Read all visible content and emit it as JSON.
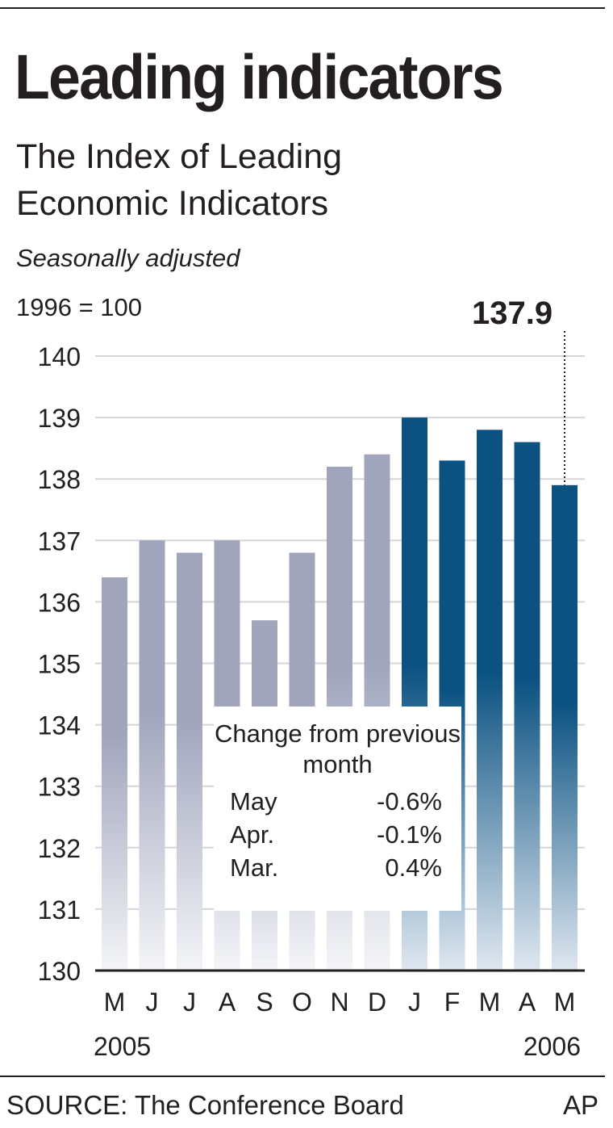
{
  "chart_data": {
    "type": "bar",
    "title": "Leading indicators",
    "subtitle": "The Index of Leading Economic Indicators",
    "note": "Seasonally adjusted",
    "ylabel": "1996 = 100",
    "ylim": [
      130,
      140
    ],
    "yticks": [
      "130",
      "131",
      "132",
      "133",
      "134",
      "135",
      "136",
      "137",
      "138",
      "139",
      "140"
    ],
    "categories": [
      "M",
      "J",
      "J",
      "A",
      "S",
      "O",
      "N",
      "D",
      "J",
      "F",
      "M",
      "A",
      "M"
    ],
    "years": [
      "2005",
      "2006"
    ],
    "values": [
      136.4,
      137.0,
      136.8,
      137.0,
      135.7,
      136.8,
      138.2,
      138.4,
      139.0,
      138.3,
      138.8,
      138.6,
      137.9
    ],
    "highlight_from_index": 8,
    "last_label": "137.9",
    "colors": {
      "past": "#a0a5bc",
      "recent": "#0b5282"
    },
    "grid": true,
    "inset": {
      "title": "Change from previous month",
      "rows": [
        {
          "month": "May",
          "change": "-0.6%"
        },
        {
          "month": "Apr.",
          "change": "-0.1%"
        },
        {
          "month": "Mar.",
          "change": "0.4%"
        }
      ]
    }
  },
  "footer": {
    "source": "SOURCE: The Conference Board",
    "credit": "AP"
  }
}
